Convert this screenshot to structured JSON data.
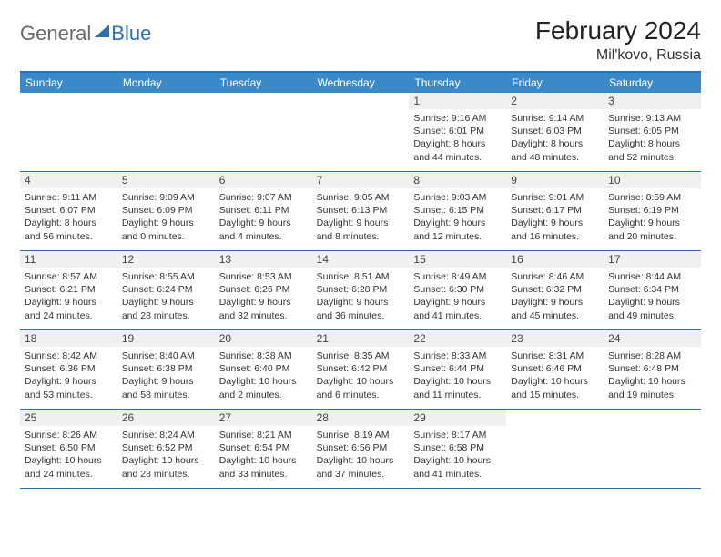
{
  "colors": {
    "header_bar": "#3a8ac9",
    "border_blue": "#2b6fb5",
    "daynum_bg": "#eef0f2",
    "text": "#333333",
    "logo_gray": "#6a6a6a",
    "background": "#ffffff"
  },
  "logo": {
    "part1": "General",
    "part2": "Blue"
  },
  "title": "February 2024",
  "subtitle": "Mil'kovo, Russia",
  "weekdays": [
    "Sunday",
    "Monday",
    "Tuesday",
    "Wednesday",
    "Thursday",
    "Friday",
    "Saturday"
  ],
  "first_weekday_index": 4,
  "days": [
    {
      "n": "1",
      "sunrise": "Sunrise: 9:16 AM",
      "sunset": "Sunset: 6:01 PM",
      "day1": "Daylight: 8 hours",
      "day2": "and 44 minutes."
    },
    {
      "n": "2",
      "sunrise": "Sunrise: 9:14 AM",
      "sunset": "Sunset: 6:03 PM",
      "day1": "Daylight: 8 hours",
      "day2": "and 48 minutes."
    },
    {
      "n": "3",
      "sunrise": "Sunrise: 9:13 AM",
      "sunset": "Sunset: 6:05 PM",
      "day1": "Daylight: 8 hours",
      "day2": "and 52 minutes."
    },
    {
      "n": "4",
      "sunrise": "Sunrise: 9:11 AM",
      "sunset": "Sunset: 6:07 PM",
      "day1": "Daylight: 8 hours",
      "day2": "and 56 minutes."
    },
    {
      "n": "5",
      "sunrise": "Sunrise: 9:09 AM",
      "sunset": "Sunset: 6:09 PM",
      "day1": "Daylight: 9 hours",
      "day2": "and 0 minutes."
    },
    {
      "n": "6",
      "sunrise": "Sunrise: 9:07 AM",
      "sunset": "Sunset: 6:11 PM",
      "day1": "Daylight: 9 hours",
      "day2": "and 4 minutes."
    },
    {
      "n": "7",
      "sunrise": "Sunrise: 9:05 AM",
      "sunset": "Sunset: 6:13 PM",
      "day1": "Daylight: 9 hours",
      "day2": "and 8 minutes."
    },
    {
      "n": "8",
      "sunrise": "Sunrise: 9:03 AM",
      "sunset": "Sunset: 6:15 PM",
      "day1": "Daylight: 9 hours",
      "day2": "and 12 minutes."
    },
    {
      "n": "9",
      "sunrise": "Sunrise: 9:01 AM",
      "sunset": "Sunset: 6:17 PM",
      "day1": "Daylight: 9 hours",
      "day2": "and 16 minutes."
    },
    {
      "n": "10",
      "sunrise": "Sunrise: 8:59 AM",
      "sunset": "Sunset: 6:19 PM",
      "day1": "Daylight: 9 hours",
      "day2": "and 20 minutes."
    },
    {
      "n": "11",
      "sunrise": "Sunrise: 8:57 AM",
      "sunset": "Sunset: 6:21 PM",
      "day1": "Daylight: 9 hours",
      "day2": "and 24 minutes."
    },
    {
      "n": "12",
      "sunrise": "Sunrise: 8:55 AM",
      "sunset": "Sunset: 6:24 PM",
      "day1": "Daylight: 9 hours",
      "day2": "and 28 minutes."
    },
    {
      "n": "13",
      "sunrise": "Sunrise: 8:53 AM",
      "sunset": "Sunset: 6:26 PM",
      "day1": "Daylight: 9 hours",
      "day2": "and 32 minutes."
    },
    {
      "n": "14",
      "sunrise": "Sunrise: 8:51 AM",
      "sunset": "Sunset: 6:28 PM",
      "day1": "Daylight: 9 hours",
      "day2": "and 36 minutes."
    },
    {
      "n": "15",
      "sunrise": "Sunrise: 8:49 AM",
      "sunset": "Sunset: 6:30 PM",
      "day1": "Daylight: 9 hours",
      "day2": "and 41 minutes."
    },
    {
      "n": "16",
      "sunrise": "Sunrise: 8:46 AM",
      "sunset": "Sunset: 6:32 PM",
      "day1": "Daylight: 9 hours",
      "day2": "and 45 minutes."
    },
    {
      "n": "17",
      "sunrise": "Sunrise: 8:44 AM",
      "sunset": "Sunset: 6:34 PM",
      "day1": "Daylight: 9 hours",
      "day2": "and 49 minutes."
    },
    {
      "n": "18",
      "sunrise": "Sunrise: 8:42 AM",
      "sunset": "Sunset: 6:36 PM",
      "day1": "Daylight: 9 hours",
      "day2": "and 53 minutes."
    },
    {
      "n": "19",
      "sunrise": "Sunrise: 8:40 AM",
      "sunset": "Sunset: 6:38 PM",
      "day1": "Daylight: 9 hours",
      "day2": "and 58 minutes."
    },
    {
      "n": "20",
      "sunrise": "Sunrise: 8:38 AM",
      "sunset": "Sunset: 6:40 PM",
      "day1": "Daylight: 10 hours",
      "day2": "and 2 minutes."
    },
    {
      "n": "21",
      "sunrise": "Sunrise: 8:35 AM",
      "sunset": "Sunset: 6:42 PM",
      "day1": "Daylight: 10 hours",
      "day2": "and 6 minutes."
    },
    {
      "n": "22",
      "sunrise": "Sunrise: 8:33 AM",
      "sunset": "Sunset: 6:44 PM",
      "day1": "Daylight: 10 hours",
      "day2": "and 11 minutes."
    },
    {
      "n": "23",
      "sunrise": "Sunrise: 8:31 AM",
      "sunset": "Sunset: 6:46 PM",
      "day1": "Daylight: 10 hours",
      "day2": "and 15 minutes."
    },
    {
      "n": "24",
      "sunrise": "Sunrise: 8:28 AM",
      "sunset": "Sunset: 6:48 PM",
      "day1": "Daylight: 10 hours",
      "day2": "and 19 minutes."
    },
    {
      "n": "25",
      "sunrise": "Sunrise: 8:26 AM",
      "sunset": "Sunset: 6:50 PM",
      "day1": "Daylight: 10 hours",
      "day2": "and 24 minutes."
    },
    {
      "n": "26",
      "sunrise": "Sunrise: 8:24 AM",
      "sunset": "Sunset: 6:52 PM",
      "day1": "Daylight: 10 hours",
      "day2": "and 28 minutes."
    },
    {
      "n": "27",
      "sunrise": "Sunrise: 8:21 AM",
      "sunset": "Sunset: 6:54 PM",
      "day1": "Daylight: 10 hours",
      "day2": "and 33 minutes."
    },
    {
      "n": "28",
      "sunrise": "Sunrise: 8:19 AM",
      "sunset": "Sunset: 6:56 PM",
      "day1": "Daylight: 10 hours",
      "day2": "and 37 minutes."
    },
    {
      "n": "29",
      "sunrise": "Sunrise: 8:17 AM",
      "sunset": "Sunset: 6:58 PM",
      "day1": "Daylight: 10 hours",
      "day2": "and 41 minutes."
    }
  ]
}
